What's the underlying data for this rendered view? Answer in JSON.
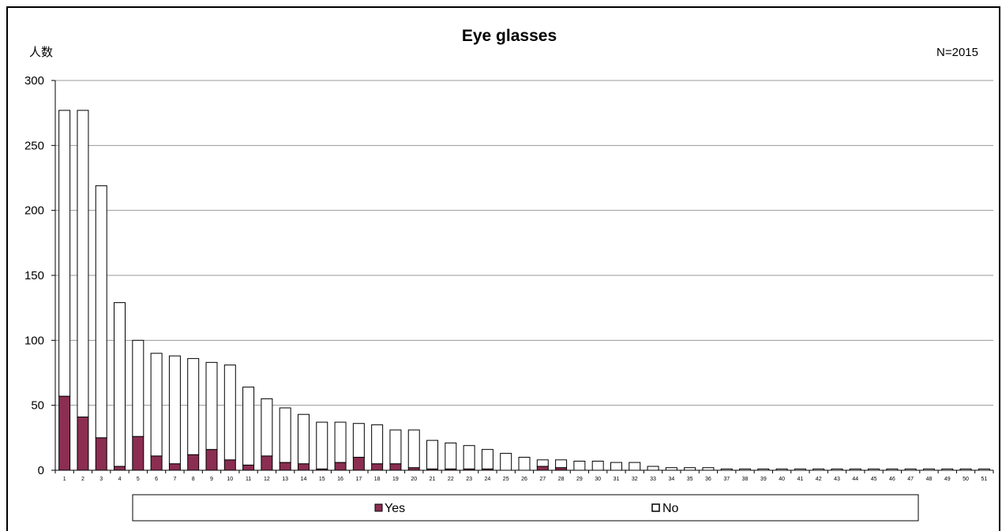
{
  "chart_data": {
    "type": "bar",
    "stacked": true,
    "title": "Eye glasses",
    "ylabel": "人数",
    "annotation": "N=2015",
    "ylim": [
      0,
      300
    ],
    "yticks": [
      0,
      50,
      100,
      150,
      200,
      250,
      300
    ],
    "grid": true,
    "legend_position": "bottom",
    "categories": [
      "1",
      "2",
      "3",
      "4",
      "5",
      "6",
      "7",
      "8",
      "9",
      "10",
      "11",
      "12",
      "13",
      "14",
      "15",
      "16",
      "17",
      "18",
      "19",
      "20",
      "21",
      "22",
      "23",
      "24",
      "25",
      "26",
      "27",
      "28",
      "29",
      "30",
      "31",
      "32",
      "33",
      "34",
      "35",
      "36",
      "37",
      "38",
      "39",
      "40",
      "41",
      "42",
      "43",
      "44",
      "45",
      "46",
      "47",
      "48",
      "49",
      "50",
      "51"
    ],
    "series": [
      {
        "name": "Yes",
        "color": "#8b2e52",
        "values": [
          57,
          41,
          25,
          3,
          26,
          11,
          5,
          12,
          16,
          8,
          4,
          11,
          6,
          5,
          1,
          6,
          10,
          5,
          5,
          2,
          1,
          1,
          1,
          1,
          0,
          0,
          3,
          2,
          0,
          0,
          0,
          0,
          0,
          0,
          0,
          0,
          0,
          0,
          0,
          0,
          0,
          0,
          0,
          0,
          0,
          0,
          0,
          0,
          0,
          0,
          0
        ]
      },
      {
        "name": "No",
        "color": "#ffffff",
        "values": [
          220,
          236,
          194,
          126,
          74,
          79,
          83,
          74,
          67,
          73,
          60,
          44,
          42,
          38,
          36,
          31,
          26,
          30,
          26,
          29,
          22,
          20,
          18,
          15,
          13,
          10,
          5,
          6,
          7,
          7,
          6,
          6,
          3,
          2,
          2,
          2,
          1,
          1,
          1,
          1,
          1,
          1,
          1,
          1,
          1,
          1,
          1,
          1,
          1,
          1,
          1
        ]
      }
    ]
  }
}
